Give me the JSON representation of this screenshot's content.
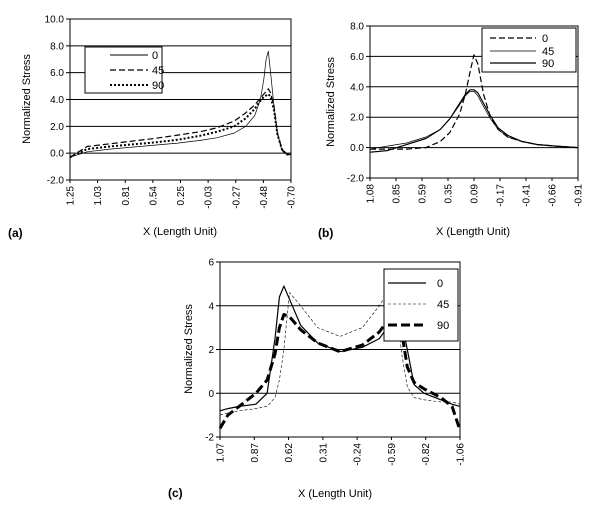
{
  "chart_data": [
    {
      "type": "line",
      "panel_label": "(a)",
      "xlabel": "X (Length Unit)",
      "ylabel": "Normalized Stress",
      "x_tick_labels": [
        "1.25",
        "1.03",
        "0.81",
        "0.54",
        "0.25",
        "-0.03",
        "-0.27",
        "-0.48",
        "-0.70"
      ],
      "y_tick_labels": [
        "-2.0",
        "0.0",
        "2.0",
        "4.0",
        "6.0",
        "8.0",
        "10.0"
      ],
      "x_range": [
        1.25,
        -0.7
      ],
      "ylim": [
        -2,
        10
      ],
      "y_ticks": [
        -2,
        0,
        2,
        4,
        6,
        8,
        10
      ],
      "grid": "horizontal",
      "legend_placement": "top-left",
      "series": [
        {
          "name": "0",
          "style": "solid-thin",
          "x": [
            1.25,
            1.1,
            0.9,
            0.7,
            0.5,
            0.3,
            0.1,
            -0.05,
            -0.2,
            -0.3,
            -0.38,
            -0.43,
            -0.46,
            -0.48,
            -0.5,
            -0.52,
            -0.55,
            -0.58,
            -0.62,
            -0.66,
            -0.7
          ],
          "y": [
            -0.3,
            0.1,
            0.3,
            0.45,
            0.6,
            0.75,
            0.95,
            1.15,
            1.5,
            2.0,
            2.8,
            4.0,
            5.5,
            7.0,
            7.6,
            6.0,
            3.5,
            1.5,
            0.2,
            -0.1,
            -0.1
          ]
        },
        {
          "name": "45",
          "style": "dashed",
          "x": [
            1.25,
            1.1,
            0.9,
            0.7,
            0.5,
            0.3,
            0.1,
            -0.05,
            -0.2,
            -0.3,
            -0.38,
            -0.43,
            -0.46,
            -0.48,
            -0.5,
            -0.52,
            -0.55,
            -0.58,
            -0.62,
            -0.66,
            -0.7
          ],
          "y": [
            -0.3,
            0.5,
            0.7,
            0.9,
            1.1,
            1.35,
            1.6,
            1.9,
            2.4,
            3.0,
            3.6,
            4.1,
            4.4,
            4.6,
            4.8,
            4.5,
            3.5,
            1.5,
            0.3,
            -0.1,
            -0.1
          ]
        },
        {
          "name": "90",
          "style": "dotted",
          "x": [
            1.25,
            1.1,
            0.9,
            0.7,
            0.5,
            0.3,
            0.1,
            -0.05,
            -0.2,
            -0.3,
            -0.38,
            -0.43,
            -0.46,
            -0.48,
            -0.5,
            -0.52,
            -0.55,
            -0.58,
            -0.62,
            -0.66,
            -0.7
          ],
          "y": [
            -0.3,
            0.3,
            0.5,
            0.65,
            0.8,
            1.0,
            1.3,
            1.6,
            2.0,
            2.6,
            3.3,
            3.9,
            4.2,
            4.3,
            4.4,
            4.2,
            3.2,
            1.4,
            0.3,
            -0.1,
            -0.1
          ]
        }
      ]
    },
    {
      "type": "line",
      "panel_label": "(b)",
      "xlabel": "X (Length Unit)",
      "ylabel": "Normalized Stress",
      "x_tick_labels": [
        "1.08",
        "0.85",
        "0.59",
        "0.35",
        "0.09",
        "-0.17",
        "-0.41",
        "-0.66",
        "-0.91"
      ],
      "y_tick_labels": [
        "-2.0",
        "0.0",
        "2.0",
        "4.0",
        "6.0",
        "8.0"
      ],
      "x_range": [
        1.08,
        -1.08
      ],
      "ylim": [
        -2,
        8
      ],
      "y_ticks": [
        -2,
        0,
        2,
        4,
        6,
        8
      ],
      "grid": "horizontal",
      "legend_placement": "top-right",
      "series": [
        {
          "name": "0",
          "style": "dashed",
          "x": [
            1.08,
            0.9,
            0.7,
            0.5,
            0.35,
            0.25,
            0.15,
            0.09,
            0.04,
            0.0,
            -0.04,
            -0.1,
            -0.17,
            -0.25,
            -0.35,
            -0.5,
            -0.66,
            -0.85,
            -1.08
          ],
          "y": [
            -0.1,
            -0.1,
            -0.1,
            0.0,
            0.4,
            1.0,
            2.2,
            3.5,
            5.0,
            6.1,
            5.5,
            3.5,
            2.0,
            1.2,
            0.7,
            0.4,
            0.2,
            0.1,
            0.0
          ]
        },
        {
          "name": "45",
          "style": "solid-thin",
          "x": [
            1.08,
            0.9,
            0.7,
            0.5,
            0.35,
            0.25,
            0.15,
            0.09,
            0.04,
            0.0,
            -0.04,
            -0.1,
            -0.17,
            -0.25,
            -0.35,
            -0.5,
            -0.66,
            -0.85,
            -1.08
          ],
          "y": [
            -0.1,
            0.1,
            0.3,
            0.7,
            1.2,
            1.9,
            2.8,
            3.4,
            3.7,
            3.7,
            3.4,
            2.7,
            1.9,
            1.2,
            0.7,
            0.4,
            0.2,
            0.1,
            0.0
          ]
        },
        {
          "name": "90",
          "style": "solid",
          "x": [
            1.08,
            0.9,
            0.7,
            0.5,
            0.35,
            0.25,
            0.15,
            0.09,
            0.04,
            0.0,
            -0.04,
            -0.1,
            -0.17,
            -0.25,
            -0.35,
            -0.5,
            -0.66,
            -0.85,
            -1.08
          ],
          "y": [
            -0.3,
            -0.2,
            0.2,
            0.6,
            1.2,
            1.9,
            2.9,
            3.5,
            3.8,
            3.8,
            3.6,
            2.9,
            2.1,
            1.3,
            0.8,
            0.4,
            0.2,
            0.1,
            0.0
          ]
        }
      ]
    },
    {
      "type": "line",
      "panel_label": "(c)",
      "xlabel": "X (Length Unit)",
      "ylabel": "Normalized Stress",
      "x_tick_labels": [
        "1.07",
        "0.87",
        "0.62",
        "0.31",
        "-0.24",
        "-0.59",
        "-0.82",
        "-1.06"
      ],
      "y_tick_labels": [
        "-2",
        "0",
        "2",
        "4",
        "6"
      ],
      "x_range": [
        1.07,
        -1.07
      ],
      "ylim": [
        -2,
        6
      ],
      "y_ticks": [
        -2,
        0,
        2,
        4,
        6
      ],
      "grid": "horizontal",
      "legend_placement": "top-right",
      "series": [
        {
          "name": "0",
          "style": "solid",
          "x": [
            1.07,
            1.0,
            0.9,
            0.75,
            0.65,
            0.58,
            0.54,
            0.5,
            0.45,
            0.35,
            0.2,
            0.0,
            -0.2,
            -0.35,
            -0.45,
            -0.5,
            -0.55,
            -0.6,
            -0.66,
            -0.75,
            -0.9,
            -1.0,
            -1.07
          ],
          "y": [
            -0.8,
            -0.7,
            -0.6,
            -0.5,
            0.0,
            2.5,
            4.4,
            4.9,
            4.3,
            3.1,
            2.3,
            1.9,
            2.1,
            2.5,
            3.2,
            3.6,
            3.2,
            2.0,
            0.4,
            0.0,
            -0.3,
            -0.5,
            -0.6
          ]
        },
        {
          "name": "45",
          "style": "dashed-thin",
          "x": [
            1.07,
            1.0,
            0.9,
            0.75,
            0.65,
            0.58,
            0.54,
            0.5,
            0.45,
            0.35,
            0.2,
            0.0,
            -0.2,
            -0.35,
            -0.45,
            -0.5,
            -0.55,
            -0.6,
            -0.66,
            -0.75,
            -0.9,
            -1.0,
            -1.07
          ],
          "y": [
            -1.0,
            -0.9,
            -0.8,
            -0.7,
            -0.6,
            -0.2,
            0.6,
            2.0,
            4.6,
            4.0,
            3.0,
            2.6,
            3.0,
            4.0,
            4.8,
            4.2,
            1.8,
            0.3,
            -0.2,
            -0.3,
            -0.4,
            -0.4,
            -0.5
          ]
        },
        {
          "name": "90",
          "style": "dashed-bold",
          "x": [
            1.07,
            1.0,
            0.9,
            0.75,
            0.65,
            0.58,
            0.54,
            0.5,
            0.45,
            0.35,
            0.2,
            0.0,
            -0.2,
            -0.35,
            -0.45,
            -0.5,
            -0.55,
            -0.6,
            -0.66,
            -0.75,
            -0.9,
            -1.0,
            -1.07
          ],
          "y": [
            -1.6,
            -1.0,
            -0.6,
            0.0,
            0.6,
            1.8,
            3.0,
            3.6,
            3.5,
            2.9,
            2.3,
            1.9,
            2.2,
            2.8,
            3.5,
            3.6,
            2.8,
            1.2,
            0.5,
            0.2,
            -0.2,
            -0.6,
            -1.7
          ]
        }
      ]
    }
  ]
}
